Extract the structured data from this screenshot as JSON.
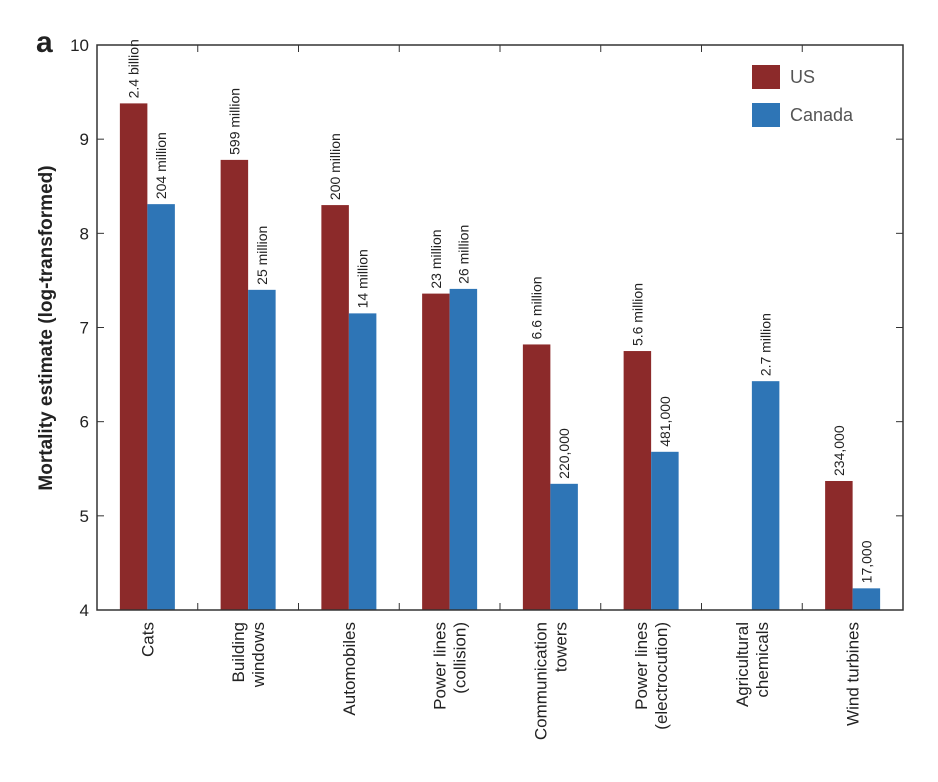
{
  "chart_data": {
    "type": "bar",
    "panel_label": "a",
    "ylabel": "Mortality estimate (log-transformed)",
    "categories": [
      [
        "Cats"
      ],
      [
        "Building",
        "windows"
      ],
      [
        "Automobiles"
      ],
      [
        "Power lines",
        "(collision)"
      ],
      [
        "Communication",
        "towers"
      ],
      [
        "Power lines",
        "(electrocution)"
      ],
      [
        "Agricultural",
        "chemicals"
      ],
      [
        "Wind turbines"
      ]
    ],
    "series": [
      {
        "name": "US",
        "color": "#8c2a2a",
        "values": [
          9.38,
          8.78,
          8.3,
          7.36,
          6.82,
          6.75,
          null,
          5.37
        ],
        "value_labels": [
          "2.4 billion",
          "599 million",
          "200 million",
          "23 million",
          "6.6 million",
          "5.6 million",
          null,
          "234,000"
        ]
      },
      {
        "name": "Canada",
        "color": "#2e75b6",
        "values": [
          8.31,
          7.4,
          7.15,
          7.41,
          5.34,
          5.68,
          6.43,
          4.23
        ],
        "value_labels": [
          "204 million",
          "25 million",
          "14 million",
          "26 million",
          "220,000",
          "481,000",
          "2.7 million",
          "17,000"
        ]
      }
    ],
    "ylim": [
      4,
      10
    ],
    "yticks": [
      4,
      5,
      6,
      7,
      8,
      9,
      10
    ],
    "legend": "upper right"
  }
}
